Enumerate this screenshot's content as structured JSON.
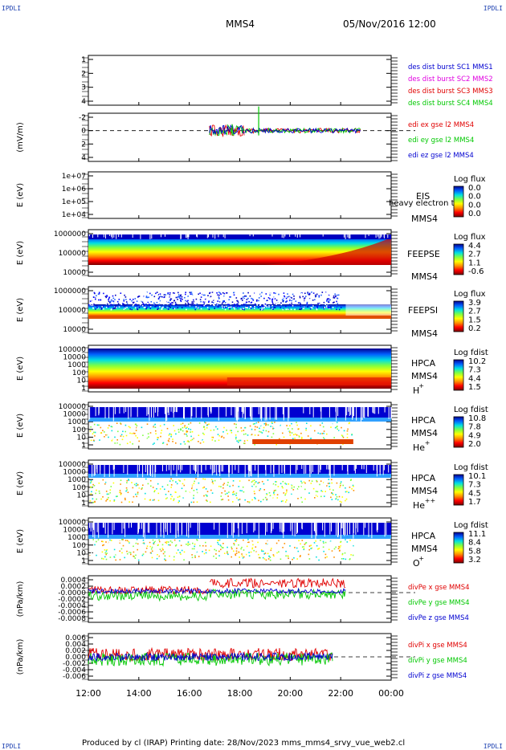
{
  "corners": {
    "tl": "IPDLI",
    "tr": "IPDLI",
    "bl": "IPDLI",
    "br": "IPDLI"
  },
  "header": {
    "spacecraft": "MMS4",
    "datetime": "05/Nov/2016 12:00"
  },
  "footer": {
    "text": "Produced by cl (IRAP)   Printing date: 28/Nov/2023   mms_mms4_srvy_vue_web2.cl"
  },
  "time_axis": {
    "labels": [
      "12:00",
      "14:00",
      "16:00",
      "18:00",
      "20:00",
      "22:00",
      "00:00"
    ]
  },
  "colors": {
    "red": "#e00000",
    "green": "#00c800",
    "blue": "#0000d0",
    "magenta": "#e000e0"
  },
  "chart_data": [
    {
      "type": "line",
      "panel": "burst",
      "ylim": [
        0.5,
        4.5
      ],
      "yticks": [
        "1",
        "2",
        "3",
        "4"
      ],
      "legend": [
        {
          "name": "des dist burst SC1 MMS1",
          "color": "#0000d0"
        },
        {
          "name": "des dist burst SC2 MMS2",
          "color": "#e000e0"
        },
        {
          "name": "des dist burst SC3 MMS3",
          "color": "#e00000"
        },
        {
          "name": "des dist burst SC4 MMS4",
          "color": "#00c800"
        }
      ]
    },
    {
      "type": "line",
      "panel": "edi",
      "ylabel": "(mV/m)",
      "ylim": [
        -3,
        4.2
      ],
      "yticks": [
        "-2",
        "0",
        "2",
        "4"
      ],
      "series": [
        {
          "name": "edi ex gse l2 MMS4",
          "color": "#e00000"
        },
        {
          "name": "edi ey gse l2 MMS4",
          "color": "#00c800"
        },
        {
          "name": "edi ez gse l2 MMS4",
          "color": "#0000d0"
        }
      ]
    },
    {
      "type": "heatmap",
      "panel": "eis",
      "ylabel": "E (eV)",
      "yticks": [
        "1e+07",
        "1e+06",
        "1e+05",
        "1e+04"
      ],
      "labels": [
        "EIS",
        "MMS4"
      ],
      "cbar_title": "Log flux",
      "cbar_ticks": [
        "0.0",
        "0.0",
        "0.0",
        "0.0"
      ],
      "overlay": "heavy electron to"
    },
    {
      "type": "heatmap",
      "panel": "feepse",
      "ylabel": "E (eV)",
      "yticks": [
        "1000000",
        "100000",
        "10000"
      ],
      "labels": [
        "FEEPSE",
        "MMS4"
      ],
      "cbar_title": "Log flux",
      "cbar_ticks": [
        "4.4",
        "2.7",
        "1.1",
        "-0.6"
      ]
    },
    {
      "type": "heatmap",
      "panel": "feepsi",
      "ylabel": "E (eV)",
      "yticks": [
        "1000000",
        "100000",
        "10000"
      ],
      "labels": [
        "FEEPSI",
        "MMS4"
      ],
      "cbar_title": "Log flux",
      "cbar_ticks": [
        "3.9",
        "2.7",
        "1.5",
        "0.2"
      ]
    },
    {
      "type": "heatmap",
      "panel": "hpca_h",
      "ylabel": "E (eV)",
      "yticks": [
        "100000",
        "10000",
        "1000",
        "100",
        "10",
        "1"
      ],
      "labels": [
        "HPCA",
        "MMS4",
        "H",
        "+"
      ],
      "cbar_title": "Log fdist",
      "cbar_ticks": [
        "10.2",
        "7.3",
        "4.4",
        "1.5"
      ]
    },
    {
      "type": "heatmap",
      "panel": "hpca_he",
      "ylabel": "E (eV)",
      "yticks": [
        "100000",
        "10000",
        "1000",
        "100",
        "10",
        "1"
      ],
      "labels": [
        "HPCA",
        "MMS4",
        "He",
        "+"
      ],
      "cbar_title": "Log fdist",
      "cbar_ticks": [
        "10.8",
        "7.8",
        "4.9",
        "2.0"
      ]
    },
    {
      "type": "heatmap",
      "panel": "hpca_hepp",
      "ylabel": "E (eV)",
      "yticks": [
        "100000",
        "10000",
        "1000",
        "100",
        "10",
        "1"
      ],
      "labels": [
        "HPCA",
        "MMS4",
        "He",
        "++"
      ],
      "cbar_title": "Log fdist",
      "cbar_ticks": [
        "10.1",
        "7.3",
        "4.5",
        "1.7"
      ]
    },
    {
      "type": "heatmap",
      "panel": "hpca_o",
      "ylabel": "E (eV)",
      "yticks": [
        "100000",
        "10000",
        "1000",
        "100",
        "10",
        "1"
      ],
      "labels": [
        "HPCA",
        "MMS4",
        "O",
        "+"
      ],
      "cbar_title": "Log fdist",
      "cbar_ticks": [
        "11.1",
        "8.4",
        "5.8",
        "3.2"
      ]
    },
    {
      "type": "line",
      "panel": "dpe",
      "ylabel": "(nPa/km)",
      "ylim": [
        -0.0085,
        0.0005
      ],
      "yticks": [
        "0.0004",
        "0.0002",
        "-0.0000",
        "-0.0002",
        "-0.0004",
        "-0.0006",
        "-0.0008"
      ],
      "series": [
        {
          "name": "divPe x gse MMS4",
          "color": "#e00000"
        },
        {
          "name": "divPe y gse MMS4",
          "color": "#00c800"
        },
        {
          "name": "divPe z gse MMS4",
          "color": "#0000d0"
        }
      ]
    },
    {
      "type": "line",
      "panel": "dpi",
      "ylabel": "(nPa/km)",
      "ylim": [
        -0.007,
        0.007
      ],
      "yticks": [
        "0.006",
        "0.004",
        "0.002",
        "0.000",
        "-0.002",
        "-0.004",
        "-0.006"
      ],
      "series": [
        {
          "name": "divPi x gse MMS4",
          "color": "#e00000"
        },
        {
          "name": "divPi y gse MMS4",
          "color": "#00c800"
        },
        {
          "name": "divPi z gse MMS4",
          "color": "#0000d0"
        }
      ]
    }
  ]
}
